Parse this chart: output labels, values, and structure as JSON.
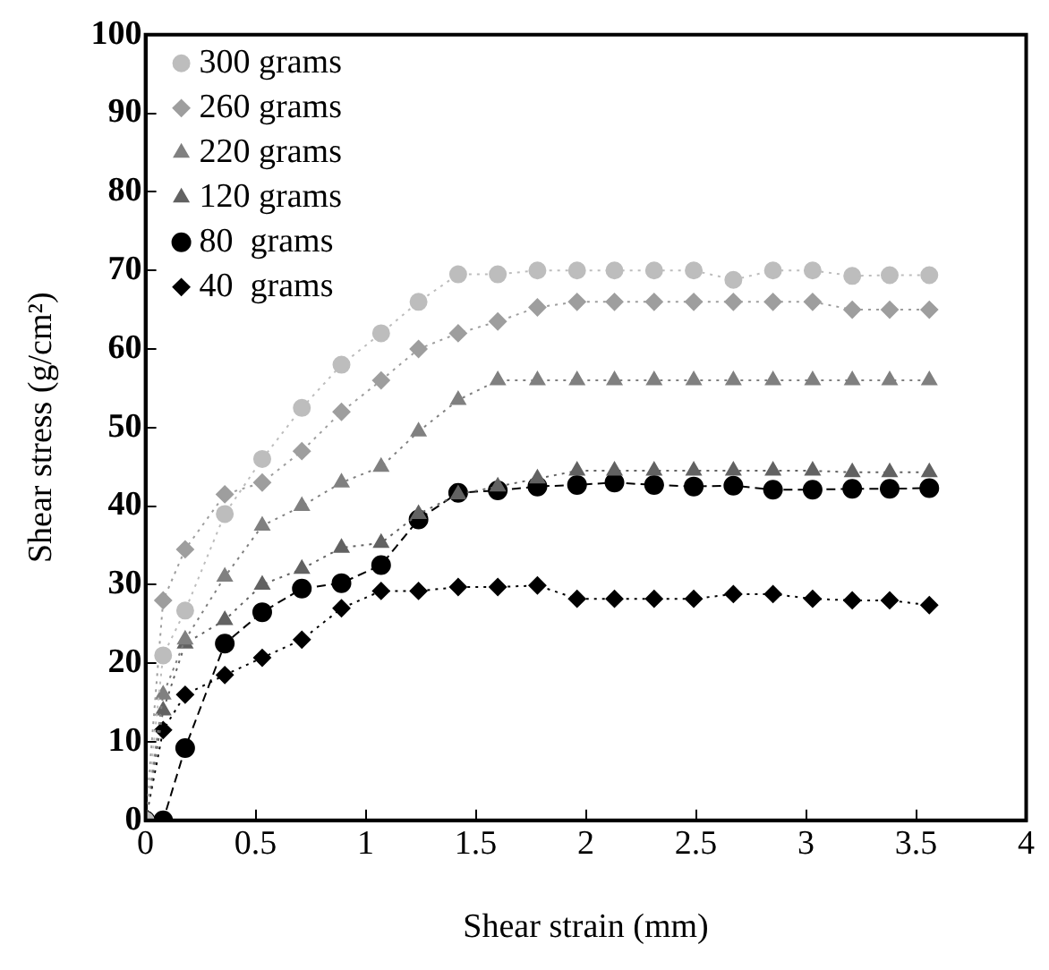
{
  "chart_data": {
    "type": "line",
    "xlabel": "Shear strain (mm)",
    "ylabel": "Shear stress (g/cm²)",
    "x": [
      0,
      0.08,
      0.18,
      0.36,
      0.53,
      0.71,
      0.89,
      1.07,
      1.24,
      1.42,
      1.6,
      1.78,
      1.96,
      2.13,
      2.31,
      2.49,
      2.67,
      2.85,
      3.03,
      3.21,
      3.38,
      3.56
    ],
    "xlim": [
      0,
      4
    ],
    "xticks": [
      0,
      0.5,
      1,
      1.5,
      2,
      2.5,
      3,
      3.5,
      4
    ],
    "ylim": [
      0,
      100
    ],
    "yticks": [
      0,
      10,
      20,
      30,
      40,
      50,
      60,
      70,
      80,
      90,
      100
    ],
    "grid": false,
    "legend": "top left",
    "series": [
      {
        "name": "300 grams",
        "color": "#bdbdbd",
        "marker": "circle",
        "line_style": "dotted",
        "values": [
          0,
          21,
          26.7,
          39,
          46,
          52.5,
          58,
          62,
          66,
          69.5,
          69.5,
          70,
          70,
          70,
          70,
          70,
          68.8,
          70,
          70,
          69.3,
          69.4,
          69.4
        ]
      },
      {
        "name": "260 grams",
        "color": "#9e9e9e",
        "marker": "diamond",
        "line_style": "dotted",
        "values": [
          0,
          28,
          34.5,
          41.5,
          43,
          47,
          52,
          56,
          60,
          62,
          63.5,
          65.3,
          66,
          66,
          66,
          66,
          66,
          66,
          66,
          65,
          65,
          65
        ]
      },
      {
        "name": "220 grams",
        "color": "#808080",
        "marker": "triangle",
        "line_style": "dotted",
        "values": [
          0,
          16,
          23,
          31,
          37.5,
          40,
          43,
          45,
          49.5,
          53.5,
          56,
          56,
          56,
          56,
          56,
          56,
          56,
          56,
          56,
          56,
          56,
          56
        ]
      },
      {
        "name": "120 grams",
        "color": "#626262",
        "marker": "triangle",
        "line_style": "dotted",
        "values": [
          0,
          14,
          22.5,
          25.5,
          30,
          32,
          34.7,
          35.3,
          39,
          41.5,
          42.5,
          43.5,
          44.5,
          44.5,
          44.5,
          44.5,
          44.5,
          44.5,
          44.5,
          44.3,
          44.3,
          44.3
        ]
      },
      {
        "name": "80  grams",
        "color": "#000000",
        "marker": "circle",
        "line_style": "dashed",
        "values": [
          0,
          0,
          9.2,
          22.5,
          26.5,
          29.5,
          30.2,
          32.5,
          38.3,
          41.7,
          42,
          42.5,
          42.7,
          43,
          42.7,
          42.5,
          42.6,
          42.1,
          42.1,
          42.2,
          42.2,
          42.3
        ]
      },
      {
        "name": "40  grams",
        "color": "#000000",
        "marker": "diamond",
        "line_style": "dotted",
        "values": [
          0,
          11.5,
          16,
          18.5,
          20.7,
          23,
          27,
          29.2,
          29.2,
          29.7,
          29.7,
          29.9,
          28.2,
          28.2,
          28.2,
          28.2,
          28.8,
          28.8,
          28.2,
          28,
          28,
          27.4
        ]
      }
    ]
  }
}
